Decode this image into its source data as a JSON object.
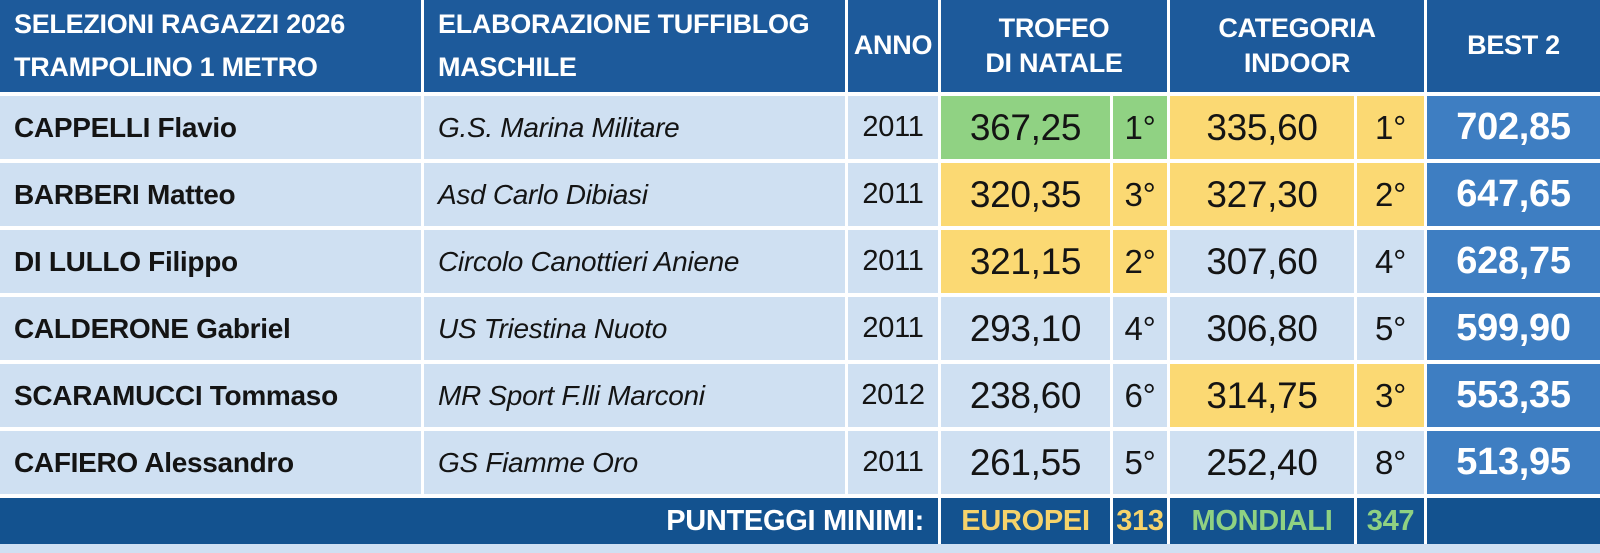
{
  "header": {
    "title_line1": "SELEZIONI RAGAZZI 2026",
    "title_line2": "TRAMPOLINO 1 METRO",
    "subtitle_line1": "ELABORAZIONE TUFFIBLOG",
    "subtitle_line2": "MASCHILE",
    "col_anno": "ANNO",
    "col_trofeo_line1": "TROFEO",
    "col_trofeo_line2": "DI NATALE",
    "col_categoria_line1": "CATEGORIA",
    "col_categoria_line2": "INDOOR",
    "col_best2": "BEST 2"
  },
  "rows": [
    {
      "name": "CAPPELLI Flavio",
      "club": "G.S. Marina Militare",
      "anno": "2011",
      "trofeo_score": "367,25",
      "trofeo_place": "1°",
      "trofeo_hl": "green",
      "categoria_score": "335,60",
      "categoria_place": "1°",
      "categoria_hl": "yellow",
      "best2": "702,85"
    },
    {
      "name": "BARBERI Matteo",
      "club": "Asd Carlo Dibiasi",
      "anno": "2011",
      "trofeo_score": "320,35",
      "trofeo_place": "3°",
      "trofeo_hl": "yellow",
      "categoria_score": "327,30",
      "categoria_place": "2°",
      "categoria_hl": "yellow",
      "best2": "647,65"
    },
    {
      "name": "DI LULLO Filippo",
      "club": "Circolo Canottieri Aniene",
      "anno": "2011",
      "trofeo_score": "321,15",
      "trofeo_place": "2°",
      "trofeo_hl": "yellow",
      "categoria_score": "307,60",
      "categoria_place": "4°",
      "categoria_hl": "none",
      "best2": "628,75"
    },
    {
      "name": "CALDERONE Gabriel",
      "club": "US Triestina Nuoto",
      "anno": "2011",
      "trofeo_score": "293,10",
      "trofeo_place": "4°",
      "trofeo_hl": "none",
      "categoria_score": "306,80",
      "categoria_place": "5°",
      "categoria_hl": "none",
      "best2": "599,90"
    },
    {
      "name": "SCARAMUCCI Tommaso",
      "club": "MR Sport F.lli Marconi",
      "anno": "2012",
      "trofeo_score": "238,60",
      "trofeo_place": "6°",
      "trofeo_hl": "none",
      "categoria_score": "314,75",
      "categoria_place": "3°",
      "categoria_hl": "yellow",
      "best2": "553,35"
    },
    {
      "name": "CAFIERO Alessandro",
      "club": "GS Fiamme Oro",
      "anno": "2011",
      "trofeo_score": "261,55",
      "trofeo_place": "5°",
      "trofeo_hl": "none",
      "categoria_score": "252,40",
      "categoria_place": "8°",
      "categoria_hl": "none",
      "best2": "513,95"
    }
  ],
  "footer": {
    "label": "PUNTEGGI MINIMI:",
    "europei_label": "EUROPEI",
    "europei_value": "313",
    "mondiali_label": "MONDIALI",
    "mondiali_value": "347"
  },
  "colors": {
    "header_blue": "#1d5a9b",
    "footer_blue": "#13528f",
    "row_light_blue": "#cfe0f2",
    "highlight_green": "#90d283",
    "highlight_yellow": "#fbd973",
    "best2_blue": "#3e7ec2",
    "footer_yellow_text": "#f6d36b",
    "footer_green_text": "#8fd182"
  }
}
